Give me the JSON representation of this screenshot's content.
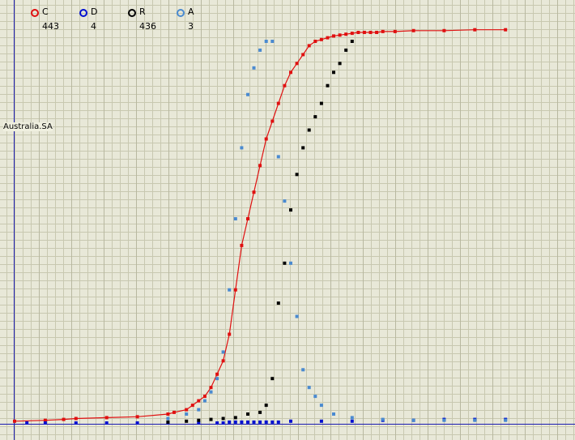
{
  "legend": [
    {
      "label": "C",
      "count": "443",
      "color": "#e01010"
    },
    {
      "label": "D",
      "count": "4",
      "color": "#0010d0"
    },
    {
      "label": "R",
      "count": "436",
      "color": "#000000"
    },
    {
      "label": "A",
      "count": "3",
      "color": "#4a8ad0"
    }
  ],
  "region_label": "Australia.SA",
  "chart_data": {
    "type": "scatter",
    "title": "",
    "region": "Australia.SA",
    "xlabel": "",
    "ylabel": "",
    "grid": true,
    "legend_position": "top-left",
    "x_unit": "days (approx. index)",
    "xlim": [
      0,
      90
    ],
    "ylim": [
      0,
      440
    ],
    "series": [
      {
        "name": "C",
        "color": "#e01010",
        "connected": true,
        "x": [
          0,
          5,
          8,
          10,
          15,
          20,
          25,
          26,
          28,
          29,
          30,
          31,
          32,
          33,
          34,
          35,
          36,
          37,
          38,
          39,
          40,
          41,
          42,
          43,
          44,
          45,
          46,
          47,
          48,
          49,
          50,
          51,
          52,
          53,
          54,
          55,
          56,
          57,
          58,
          59,
          60,
          62,
          65,
          70,
          75,
          80
        ],
        "y": [
          2,
          3,
          4,
          5,
          6,
          7,
          10,
          12,
          15,
          20,
          25,
          30,
          40,
          55,
          70,
          100,
          150,
          200,
          230,
          260,
          290,
          320,
          340,
          360,
          380,
          395,
          405,
          415,
          425,
          430,
          432,
          434,
          436,
          437,
          438,
          439,
          440,
          440,
          440,
          440,
          441,
          441,
          442,
          442,
          443,
          443
        ]
      },
      {
        "name": "D",
        "color": "#0010d0",
        "connected": false,
        "x": [
          2,
          5,
          10,
          15,
          20,
          25,
          30,
          33,
          34,
          35,
          36,
          37,
          38,
          39,
          40,
          41,
          42,
          43,
          45,
          50,
          55,
          60,
          65,
          70,
          75,
          80
        ],
        "y": [
          0,
          0,
          0,
          0,
          0,
          0,
          0,
          0,
          0,
          1,
          1,
          1,
          1,
          1,
          1,
          1,
          1,
          1,
          2,
          2,
          2,
          3,
          3,
          4,
          4,
          4
        ]
      },
      {
        "name": "R",
        "color": "#000000",
        "connected": false,
        "x": [
          25,
          28,
          30,
          32,
          34,
          36,
          38,
          40,
          41,
          42,
          43,
          44,
          45,
          46,
          47,
          48,
          49,
          50,
          51,
          52,
          53,
          54,
          55
        ],
        "y": [
          1,
          2,
          3,
          4,
          5,
          6,
          10,
          12,
          20,
          50,
          135,
          180,
          240,
          280,
          310,
          330,
          345,
          360,
          380,
          395,
          405,
          420,
          430
        ]
      },
      {
        "name": "A",
        "color": "#4a8ad0",
        "connected": false,
        "x": [
          25,
          28,
          30,
          31,
          32,
          33,
          34,
          35,
          36,
          37,
          38,
          39,
          40,
          41,
          42,
          43,
          44,
          45,
          46,
          47,
          48,
          49,
          50,
          52,
          55,
          60,
          65,
          70,
          75,
          80
        ],
        "y": [
          5,
          10,
          15,
          25,
          35,
          50,
          80,
          150,
          230,
          310,
          370,
          400,
          420,
          430,
          430,
          300,
          250,
          180,
          120,
          60,
          40,
          30,
          20,
          10,
          6,
          4,
          3,
          3,
          3,
          3
        ]
      }
    ]
  }
}
